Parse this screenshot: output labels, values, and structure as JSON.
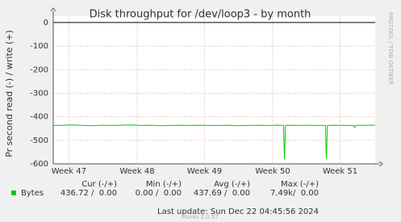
{
  "chart_data": {
    "type": "line",
    "title": "Disk throughput for /dev/loop3 - by month",
    "y_label": "Pr second read (-) / write (+)",
    "side_text": "RRDTOOL / TOBI OETIKER",
    "x": [
      0,
      1,
      2,
      3,
      4,
      5,
      6,
      7,
      8,
      9,
      10,
      11,
      12,
      13,
      14,
      15,
      16,
      17,
      18,
      19,
      20,
      21,
      22,
      23,
      23.6,
      23.7,
      23.8,
      24,
      25,
      26,
      27,
      27.9,
      28.0,
      28.1,
      29,
      30,
      30.8,
      30.9,
      31,
      32,
      33
    ],
    "series": [
      {
        "name": "Bytes",
        "color": "#00cc00",
        "values": [
          -437,
          -436,
          -435,
          -437,
          -438,
          -436,
          -437,
          -436,
          -435,
          -437,
          -436,
          -438,
          -437,
          -436,
          -437,
          -436,
          -437,
          -437,
          -436,
          -438,
          -437,
          -436,
          -437,
          -436,
          -437,
          -580,
          -437,
          -436,
          -437,
          -436,
          -437,
          -437,
          -578,
          -437,
          -436,
          -437,
          -437,
          -445,
          -437,
          -436,
          -436
        ]
      }
    ],
    "xlim": [
      0,
      33
    ],
    "xticks": [
      {
        "value": 1.6,
        "label": "Week 47"
      },
      {
        "value": 8.6,
        "label": "Week 48"
      },
      {
        "value": 15.5,
        "label": "Week 49"
      },
      {
        "value": 22.5,
        "label": "Week 50"
      },
      {
        "value": 29.4,
        "label": "Week 51"
      }
    ],
    "ylim": [
      -600,
      27
    ],
    "yticks": [
      0,
      -100,
      -200,
      -300,
      -400,
      -500,
      -600
    ],
    "grid": true,
    "legend_headers": [
      "Cur (-/+)",
      "Min (-/+)",
      "Avg (-/+)",
      "Max (-/+)"
    ],
    "legend_values": [
      "436.72 /  0.00",
      "0.00 /  0.00",
      "437.69 /  0.00",
      "7.49k/  0.00"
    ],
    "last_update": "Last update: Sun Dec 22 04:45:56 2024",
    "footer": "Munin 2.0.57"
  }
}
